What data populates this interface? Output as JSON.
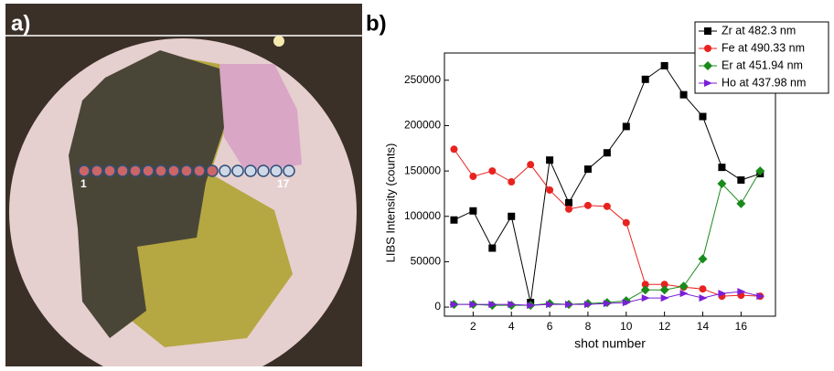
{
  "panels": {
    "a": "a)",
    "b": "b)"
  },
  "photo_labels": {
    "first": "1",
    "last": "17"
  },
  "chart_data": {
    "type": "line",
    "x": [
      1,
      2,
      3,
      4,
      5,
      6,
      7,
      8,
      9,
      10,
      11,
      12,
      13,
      14,
      15,
      16,
      17
    ],
    "series": [
      {
        "name": "Zr at 482.3 nm",
        "color": "#000000",
        "marker": "square",
        "values": [
          96000,
          106000,
          65000,
          100000,
          5000,
          162000,
          115000,
          152000,
          170000,
          199000,
          251000,
          266000,
          234000,
          210000,
          154000,
          140000,
          147000
        ]
      },
      {
        "name": "Fe at 490.33 nm",
        "color": "#e8231f",
        "marker": "circle",
        "values": [
          174000,
          144000,
          150000,
          138000,
          157000,
          129000,
          108000,
          112000,
          111000,
          93000,
          25000,
          25000,
          22000,
          20000,
          12000,
          13000,
          12000
        ]
      },
      {
        "name": "Er at 451.94 nm",
        "color": "#1a8a1a",
        "marker": "diamond",
        "values": [
          3000,
          3000,
          2000,
          2000,
          2000,
          4000,
          3000,
          4000,
          5000,
          7000,
          19000,
          19000,
          23000,
          53000,
          136000,
          114000,
          150000
        ]
      },
      {
        "name": "Ho at 437.98 nm",
        "color": "#7a1fd6",
        "marker": "triangle-right",
        "values": [
          3000,
          3000,
          3000,
          3000,
          2000,
          3000,
          3000,
          3000,
          4000,
          5000,
          10000,
          10000,
          15000,
          10000,
          15000,
          17000,
          12000
        ]
      }
    ],
    "xlabel": "shot number",
    "ylabel": "LIBS Intensity (counts)",
    "xlim": [
      0.5,
      17.8
    ],
    "ylim": [
      -10000,
      280000
    ],
    "xticks": [
      2,
      4,
      6,
      8,
      10,
      12,
      14,
      16
    ],
    "yticks": [
      0,
      50000,
      100000,
      150000,
      200000,
      250000
    ],
    "legend": "top-right"
  }
}
